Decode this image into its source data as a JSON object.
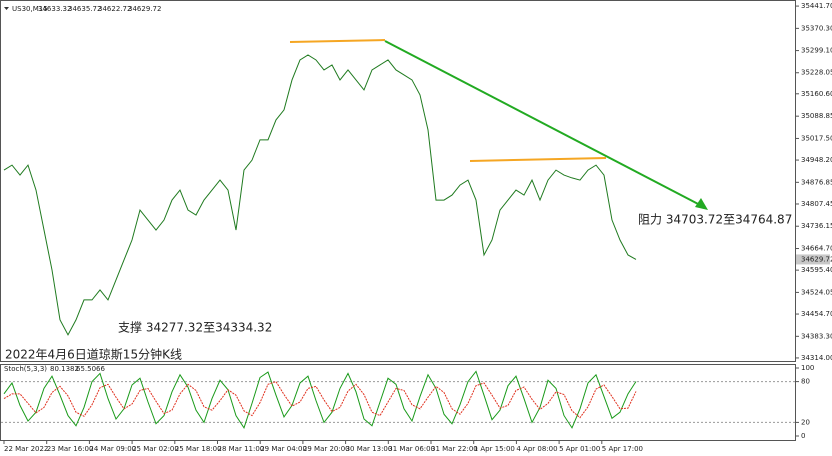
{
  "chart_data": [
    {
      "type": "line",
      "symbol": "US30,M15",
      "ohlc": [
        34633.32,
        34635.72,
        34622.72,
        34629.72
      ],
      "color": "#1f7a1f",
      "values": [
        34916,
        34932,
        34900,
        34932,
        34852,
        34724,
        34596,
        34436,
        34388,
        34436,
        34500,
        34500,
        34532,
        34500,
        34564,
        34628,
        34692,
        34788,
        34756,
        34724,
        34756,
        34820,
        34852,
        34788,
        34772,
        34820,
        34852,
        34884,
        34852,
        34724,
        34916,
        34948,
        35013,
        35013,
        35077,
        35109,
        35205,
        35269,
        35285,
        35269,
        35237,
        35253,
        35205,
        35237,
        35205,
        35173,
        35237,
        35253,
        35269,
        35237,
        35221,
        35205,
        35157,
        35045,
        34820,
        34820,
        34836,
        34868,
        34884,
        34820,
        34644,
        34692,
        34788,
        34820,
        34852,
        34836,
        34884,
        34820,
        34884,
        34916,
        34900,
        34891,
        34884,
        34916,
        34932,
        34900,
        34756,
        34692,
        34644,
        34629.72
      ],
      "ylim": [
        34301,
        35458
      ],
      "yticks": [
        {
          "value": 35441.7,
          "label": "35441.70"
        },
        {
          "value": 35370.3,
          "label": "35370.30"
        },
        {
          "value": 35299.1,
          "label": "35299.10"
        },
        {
          "value": 35228.05,
          "label": "35228.05"
        },
        {
          "value": 35160.6,
          "label": "35160.60"
        },
        {
          "value": 35088.85,
          "label": "35088.85"
        },
        {
          "value": 35017.5,
          "label": "35017.50"
        },
        {
          "value": 34948.2,
          "label": "34948.20"
        },
        {
          "value": 34876.85,
          "label": "34876.85"
        },
        {
          "value": 34807.45,
          "label": "34807.45"
        },
        {
          "value": 34736.15,
          "label": "34736.15"
        },
        {
          "value": 34664.7,
          "label": "34664.70"
        },
        {
          "value": 34595.4,
          "label": "34595.40"
        },
        {
          "value": 34524.05,
          "label": "34524.05"
        },
        {
          "value": 34454.7,
          "label": "34454.70"
        },
        {
          "value": 34383.3,
          "label": "34383.30"
        },
        {
          "value": 34314.0,
          "label": "34314.00"
        }
      ],
      "annotations": {
        "support": "支撑 34277.32至34334.32",
        "resistance": "阻力 34703.72至34764.87",
        "caption": "2022年4月6日道琼斯15分钟K线"
      }
    },
    {
      "type": "line",
      "label": "Stoch(5,3,3)",
      "series": [
        {
          "color": "#1a9a1a",
          "values": [
            62,
            78,
            45,
            22,
            35,
            70,
            88,
            60,
            30,
            15,
            42,
            80,
            92,
            55,
            25,
            40,
            75,
            85,
            50,
            18,
            30,
            65,
            90,
            72,
            38,
            20,
            55,
            82,
            68,
            30,
            12,
            48,
            86,
            94,
            60,
            28,
            45,
            78,
            88,
            52,
            20,
            35,
            70,
            92,
            65,
            25,
            15,
            50,
            85,
            76,
            40,
            22,
            58,
            90,
            70,
            32,
            18,
            46,
            80,
            95,
            60,
            24,
            38,
            74,
            88,
            55,
            20,
            42,
            82,
            70,
            30,
            12,
            40,
            78,
            90,
            58,
            26,
            35,
            62,
            80.1382
          ]
        },
        {
          "color": "#e0301e",
          "values": [
            55,
            62,
            62,
            48,
            34,
            42,
            64,
            73,
            59,
            35,
            29,
            46,
            71,
            76,
            57,
            40,
            47,
            67,
            70,
            51,
            33,
            38,
            62,
            76,
            67,
            43,
            38,
            52,
            68,
            60,
            37,
            30,
            49,
            76,
            80,
            61,
            44,
            50,
            70,
            73,
            53,
            36,
            42,
            66,
            76,
            61,
            35,
            30,
            50,
            70,
            67,
            46,
            40,
            57,
            73,
            64,
            40,
            32,
            48,
            74,
            78,
            60,
            41,
            45,
            67,
            72,
            54,
            39,
            48,
            65,
            61,
            37,
            27,
            43,
            69,
            75,
            58,
            40,
            41,
            65.5066
          ]
        }
      ],
      "ylim": [
        0,
        100
      ],
      "yticks": [
        100,
        80,
        20,
        0
      ],
      "levels": [
        80,
        20
      ],
      "x_tick_labels": [
        "22 Mar 2022",
        "23 Mar 16:00",
        "24 Mar 09:00",
        "25 Mar 02:00",
        "25 Mar 18:00",
        "28 Mar 11:00",
        "29 Mar 04:00",
        "29 Mar 20:00",
        "30 Mar 13:00",
        "31 Mar 06:00",
        "31 Mar 22:00",
        "1 Apr 15:00",
        "4 Apr 08:00",
        "5 Apr 01:00",
        "5 Apr 17:00"
      ]
    }
  ]
}
